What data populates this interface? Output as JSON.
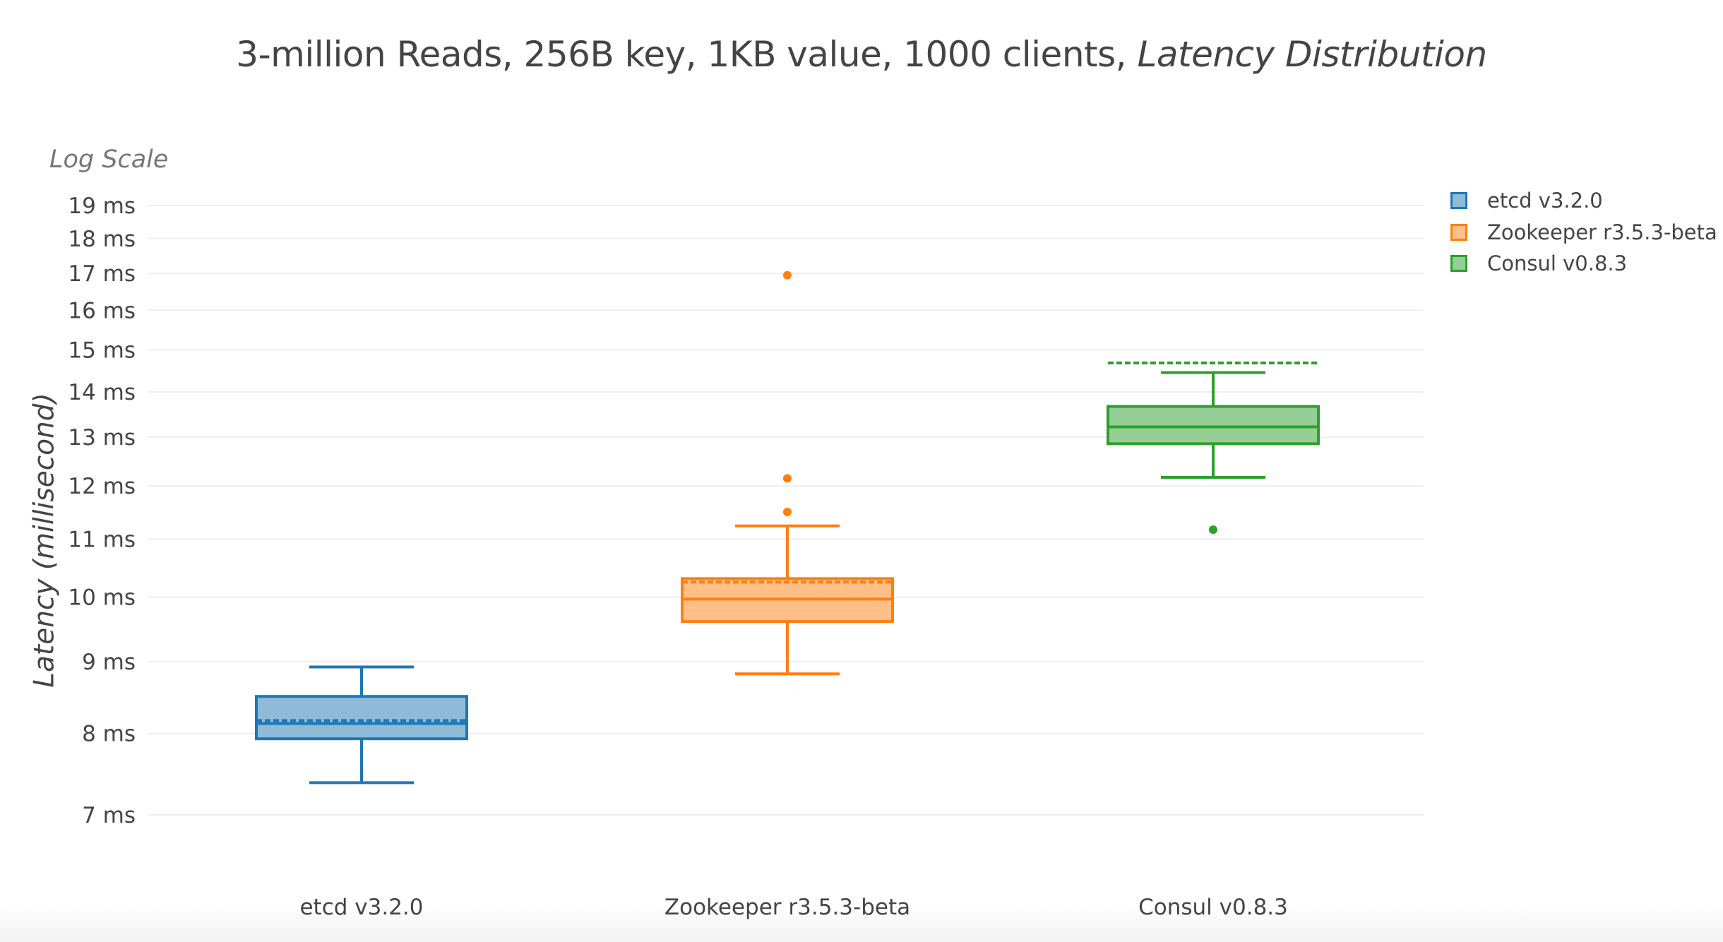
{
  "title": {
    "main": "3-million Reads, 256B key, 1KB value, 1000 clients, ",
    "emphasis": "Latency Distribution"
  },
  "y_axis": {
    "scale_note": "Log Scale",
    "title": "Latency (millisecond)"
  },
  "legend": {
    "items": [
      {
        "label": "etcd v3.2.0",
        "stroke": "#1f77b4",
        "fill": "#8fbbd9"
      },
      {
        "label": "Zookeeper r3.5.3-beta",
        "stroke": "#ff7f0e",
        "fill": "#ffbf86"
      },
      {
        "label": "Consul v0.8.3",
        "stroke": "#2ca02c",
        "fill": "#95cf95"
      }
    ]
  },
  "chart_data": {
    "type": "box",
    "title": "3-million Reads, 256B key, 1KB value, 1000 clients, Latency Distribution",
    "xlabel": "",
    "ylabel": "Latency (millisecond)",
    "y_scale": "log",
    "y_scale_note": "Log Scale",
    "ylim": [
      6.6,
      19.5
    ],
    "grid": true,
    "legend_position": "top-right",
    "y_ticks": [
      7,
      8,
      9,
      10,
      11,
      12,
      13,
      14,
      15,
      16,
      17,
      18,
      19
    ],
    "y_tick_labels": [
      "7 ms",
      "8 ms",
      "9 ms",
      "10 ms",
      "11 ms",
      "12 ms",
      "13 ms",
      "14 ms",
      "15 ms",
      "16 ms",
      "17 ms",
      "18 ms",
      "19 ms"
    ],
    "categories": [
      "etcd v3.2.0",
      "Zookeeper r3.5.3-beta",
      "Consul v0.8.3"
    ],
    "series": [
      {
        "name": "etcd v3.2.0",
        "color": "#1f77b4",
        "lower_whisker": 7.38,
        "q1": 7.93,
        "median": 8.13,
        "mean": 8.17,
        "q3": 8.5,
        "upper_whisker": 8.92,
        "outliers": []
      },
      {
        "name": "Zookeeper r3.5.3-beta",
        "color": "#ff7f0e",
        "lower_whisker": 8.82,
        "q1": 9.61,
        "median": 9.97,
        "mean": 10.25,
        "q3": 10.31,
        "upper_whisker": 11.24,
        "outliers": [
          11.5,
          12.15,
          16.95
        ]
      },
      {
        "name": "Consul v0.8.3",
        "color": "#2ca02c",
        "lower_whisker": 12.17,
        "q1": 12.86,
        "median": 13.22,
        "mean": 14.68,
        "q3": 13.67,
        "upper_whisker": 14.45,
        "outliers": [
          11.17
        ]
      }
    ]
  }
}
